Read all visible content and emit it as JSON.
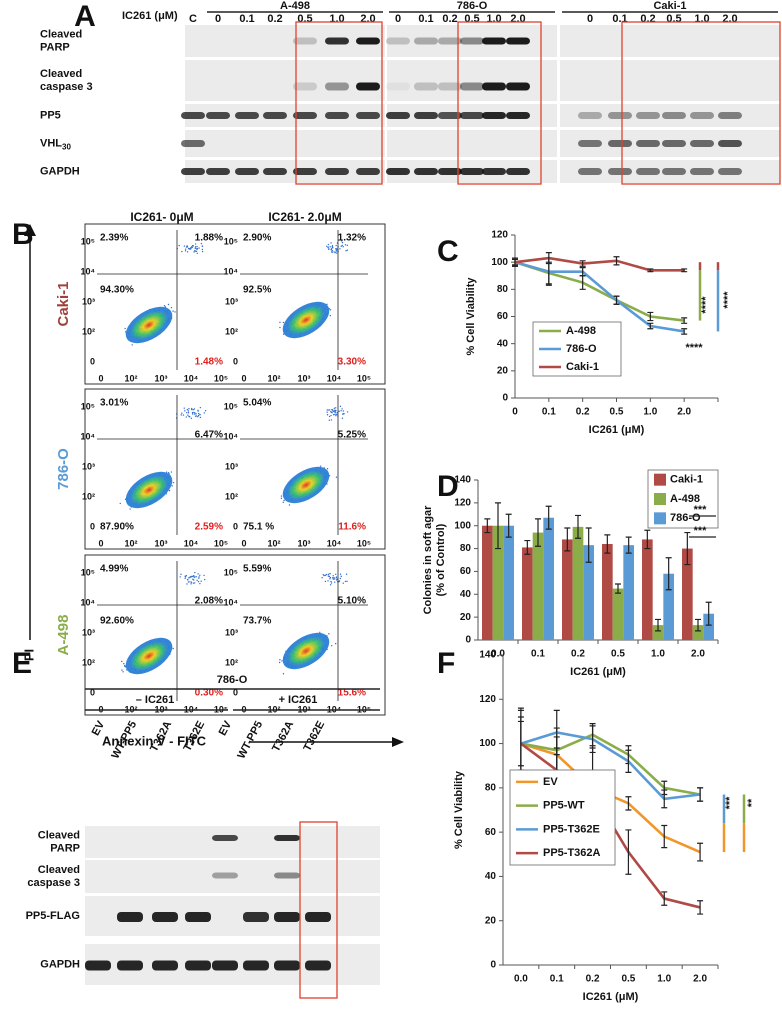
{
  "panel_a": {
    "label": "A",
    "dose_label": "IC261 (μM)",
    "groups": [
      {
        "name": "A-498",
        "lanes": [
          "C",
          "0",
          "0.1",
          "0.2",
          "0.5",
          "1.0",
          "2.0"
        ]
      },
      {
        "name": "786-O",
        "lanes": [
          "0",
          "0.1",
          "0.2",
          "0.5",
          "1.0",
          "2.0"
        ]
      },
      {
        "name": "Caki-1",
        "lanes": [
          "0",
          "0.1",
          "0.2",
          "0.5",
          "1.0",
          "2.0"
        ]
      }
    ],
    "rows": [
      {
        "lines": [
          "Cleaved",
          "PARP"
        ]
      },
      {
        "lines": [
          "Cleaved",
          "caspase 3"
        ]
      },
      {
        "lines": [
          "PP5"
        ]
      },
      {
        "lines": [
          "VHL"
        ],
        "sub": "30"
      },
      {
        "lines": [
          "GAPDH"
        ]
      }
    ]
  },
  "panel_b": {
    "label": "B",
    "columns": [
      "IC261- 0μM",
      "IC261- 2.0μM"
    ],
    "y_axis": "PI",
    "x_axis": "Annexin V - FITC",
    "y_ticks": [
      "10⁵",
      "10⁴",
      "10³",
      "10²",
      "0"
    ],
    "x_ticks": [
      "0",
      "10²",
      "10³",
      "10⁴",
      "10⁵"
    ],
    "rows": [
      {
        "name": "Caki-1",
        "color": "#a0413c",
        "plots": [
          {
            "ul": "2.39%",
            "ur": "1.88%",
            "ll": "94.30%",
            "lr": "1.48%"
          },
          {
            "ul": "2.90%",
            "ur": "1.32%",
            "ll": "92.5%",
            "lr": "3.30%"
          }
        ]
      },
      {
        "name": "786-O",
        "color": "#5b9bd5",
        "plots": [
          {
            "ul": "3.01%",
            "ur": "6.47%",
            "ll": "87.90%",
            "lr": "2.59%"
          },
          {
            "ul": "5.04%",
            "ur": "5.25%",
            "ll": "75.1 %",
            "lr": "11.6%"
          }
        ]
      },
      {
        "name": "A-498",
        "color": "#8aad4a",
        "plots": [
          {
            "ul": "4.99%",
            "ur": "2.08%",
            "ll": "92.60%",
            "lr": "0.30%"
          },
          {
            "ul": "5.59%",
            "ur": "5.10%",
            "ll": "73.7%",
            "lr": "15.6%"
          }
        ]
      }
    ]
  },
  "panel_e": {
    "label": "E",
    "cell_line": "786-O",
    "conditions": [
      "– IC261",
      "+ IC261"
    ],
    "lanes": [
      "EV",
      "WT-PP5",
      "T362A",
      "T362E",
      "EV",
      "WT-PP5",
      "T362A",
      "T362E"
    ],
    "rows": [
      {
        "lines": [
          "Cleaved",
          "PARP"
        ]
      },
      {
        "lines": [
          "Cleaved",
          "caspase 3"
        ]
      },
      {
        "lines": [
          "PP5-FLAG"
        ]
      },
      {
        "lines": [
          "GAPDH"
        ]
      }
    ]
  },
  "chart_data": [
    {
      "type": "line",
      "panel": "C",
      "xlabel": "IC261 (μM)",
      "ylabel": "% Cell Viability",
      "categories": [
        "0",
        "0.1",
        "0.2",
        "0.5",
        "1.0",
        "2.0"
      ],
      "ylim": [
        0,
        120
      ],
      "yticks": [
        0,
        20,
        40,
        60,
        80,
        100,
        120
      ],
      "series": [
        {
          "name": "A-498",
          "color": "#8aad4a",
          "values": [
            100,
            92,
            85,
            72,
            60,
            57
          ],
          "errors": [
            3,
            8,
            5,
            3,
            3,
            2
          ]
        },
        {
          "name": "786-O",
          "color": "#5b9bd5",
          "values": [
            100,
            93,
            93,
            72,
            53,
            49
          ],
          "errors": [
            3,
            10,
            3,
            3,
            2,
            2
          ]
        },
        {
          "name": "Caki-1",
          "color": "#b04a45",
          "values": [
            100,
            103,
            99,
            101,
            94,
            94
          ],
          "errors": [
            2,
            4,
            2,
            3,
            1,
            1
          ]
        }
      ],
      "annotations": [
        "****",
        "****",
        "****"
      ]
    },
    {
      "type": "bar",
      "panel": "D",
      "xlabel": "IC261 (μM)",
      "ylabel": [
        "Colonies in soft agar",
        "(% of Control)"
      ],
      "categories": [
        "0.0",
        "0.1",
        "0.2",
        "0.5",
        "1.0",
        "2.0"
      ],
      "ylim": [
        0,
        140
      ],
      "yticks": [
        0,
        20,
        40,
        60,
        80,
        100,
        120,
        140
      ],
      "series": [
        {
          "name": "Caki-1",
          "color": "#b04a45",
          "values": [
            100,
            81,
            88,
            84,
            88,
            80
          ],
          "errors": [
            6,
            6,
            10,
            8,
            8,
            14
          ]
        },
        {
          "name": "A-498",
          "color": "#8aad4a",
          "values": [
            100,
            94,
            99,
            45,
            13,
            13
          ],
          "errors": [
            20,
            12,
            10,
            4,
            5,
            5
          ]
        },
        {
          "name": "786-O",
          "color": "#5b9bd5",
          "values": [
            100,
            107,
            83,
            83,
            58,
            23
          ],
          "errors": [
            10,
            10,
            15,
            7,
            14,
            10
          ]
        }
      ],
      "annotations": [
        "***",
        "***"
      ]
    },
    {
      "type": "line",
      "panel": "F",
      "xlabel": "IC261 (μM)",
      "ylabel": "% Cell Viability",
      "categories": [
        "0.0",
        "0.1",
        "0.2",
        "0.5",
        "1.0",
        "2.0"
      ],
      "ylim": [
        0,
        140
      ],
      "yticks": [
        0,
        20,
        40,
        60,
        80,
        100,
        120,
        140
      ],
      "series": [
        {
          "name": "EV",
          "color": "#f0962a",
          "values": [
            100,
            95,
            80,
            73,
            58,
            51
          ],
          "errors": [
            16,
            8,
            4,
            3,
            5,
            4
          ]
        },
        {
          "name": "PP5-WT",
          "color": "#8aad4a",
          "values": [
            100,
            97,
            104,
            95,
            80,
            77
          ],
          "errors": [
            10,
            10,
            5,
            4,
            3,
            3
          ]
        },
        {
          "name": "PP5-T362E",
          "color": "#5b9bd5",
          "values": [
            100,
            105,
            102,
            92,
            75,
            77
          ],
          "errors": [
            12,
            10,
            6,
            5,
            4,
            3
          ]
        },
        {
          "name": "PP5-T362A",
          "color": "#b04a45",
          "values": [
            100,
            88,
            78,
            51,
            30,
            26
          ],
          "errors": [
            15,
            10,
            20,
            10,
            3,
            3
          ]
        }
      ],
      "annotations": [
        "***",
        "**"
      ]
    }
  ]
}
